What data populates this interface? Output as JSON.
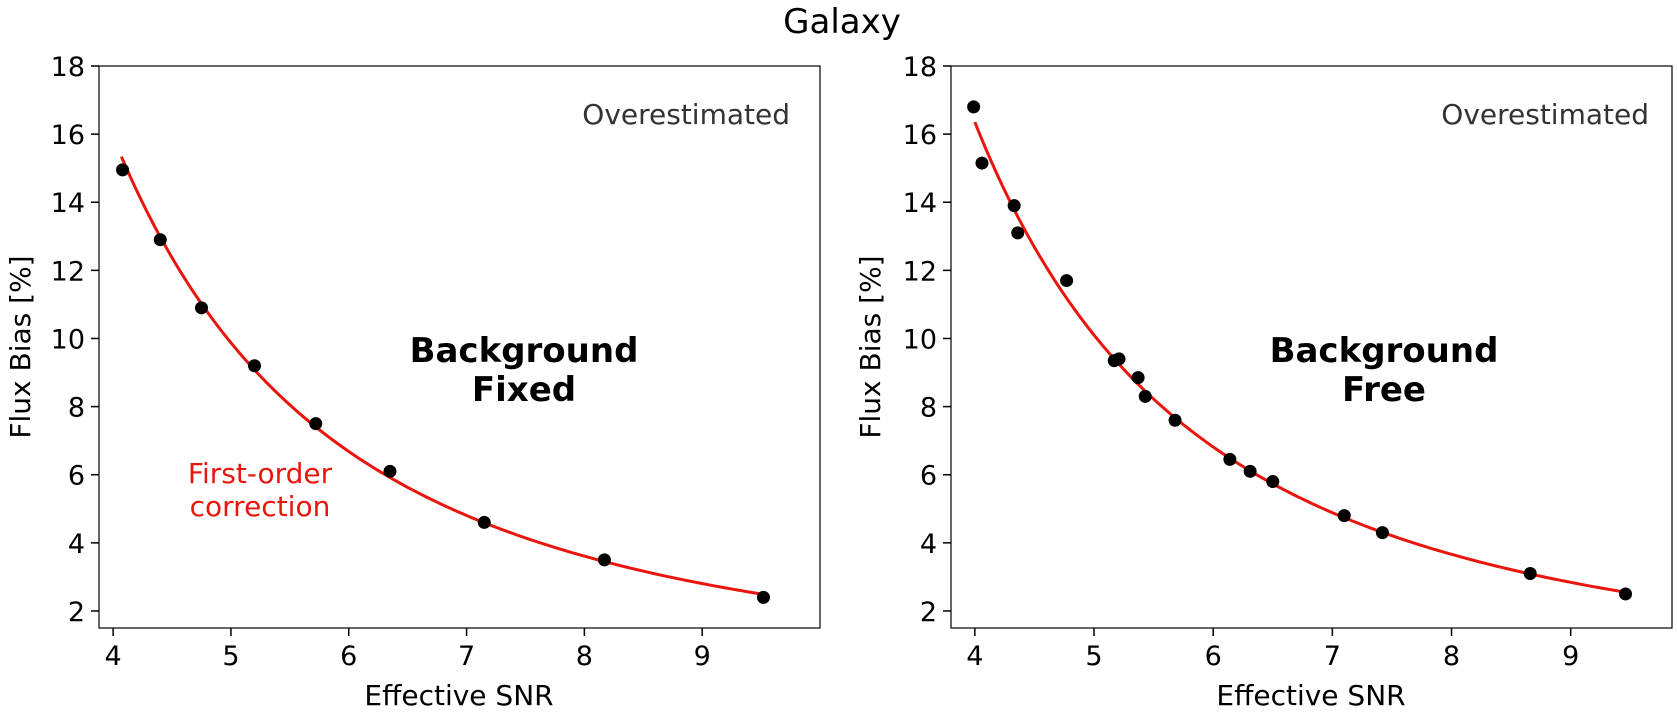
{
  "figure": {
    "title": "Galaxy"
  },
  "chart_data": [
    {
      "type": "scatter",
      "xlabel": "Effective SNR",
      "ylabel": "Flux Bias [%]",
      "xlim": [
        3.88,
        10.0
      ],
      "ylim": [
        1.5,
        18.0
      ],
      "xticks": [
        4,
        5,
        6,
        7,
        8,
        9
      ],
      "yticks": [
        2,
        4,
        6,
        8,
        10,
        12,
        14,
        16,
        18
      ],
      "grid": false,
      "annotations": {
        "corner": "Overestimated",
        "background_line1": "Background",
        "background_line2": "Fixed",
        "correction_line1": "First-order",
        "correction_line2": "correction"
      },
      "series": [
        {
          "points": [
            [
              4.08,
              14.95
            ],
            [
              4.4,
              12.9
            ],
            [
              4.75,
              10.9
            ],
            [
              5.2,
              9.2
            ],
            [
              5.72,
              7.5
            ],
            [
              6.35,
              6.1
            ],
            [
              7.15,
              4.6
            ],
            [
              8.17,
              3.5
            ],
            [
              9.52,
              2.4
            ]
          ],
          "color": "#000000"
        },
        {
          "fit": {
            "x_start": 4.07,
            "x_end": 9.52
          },
          "color": "#e8160e"
        }
      ]
    },
    {
      "type": "scatter",
      "xlabel": "Effective SNR",
      "ylabel": "Flux Bias [%]",
      "xlim": [
        3.8,
        9.85
      ],
      "ylim": [
        1.5,
        18.0
      ],
      "xticks": [
        4,
        5,
        6,
        7,
        8,
        9
      ],
      "yticks": [
        2,
        4,
        6,
        8,
        10,
        12,
        14,
        16,
        18
      ],
      "grid": false,
      "annotations": {
        "corner": "Overestimated",
        "background_line1": "Background",
        "background_line2": "Free"
      },
      "series": [
        {
          "points": [
            [
              3.99,
              16.8
            ],
            [
              4.06,
              15.15
            ],
            [
              4.33,
              13.9
            ],
            [
              4.36,
              13.1
            ],
            [
              4.77,
              11.7
            ],
            [
              5.17,
              9.35
            ],
            [
              5.21,
              9.4
            ],
            [
              5.37,
              8.85
            ],
            [
              5.43,
              8.3
            ],
            [
              5.68,
              7.6
            ],
            [
              6.14,
              6.45
            ],
            [
              6.31,
              6.1
            ],
            [
              6.5,
              5.8
            ],
            [
              7.1,
              4.8
            ],
            [
              7.42,
              4.3
            ],
            [
              8.66,
              3.1
            ],
            [
              9.46,
              2.5
            ]
          ],
          "color": "#000000"
        },
        {
          "fit": {
            "x_start": 4.0,
            "x_end": 9.46
          },
          "color": "#e8160e"
        }
      ]
    }
  ]
}
